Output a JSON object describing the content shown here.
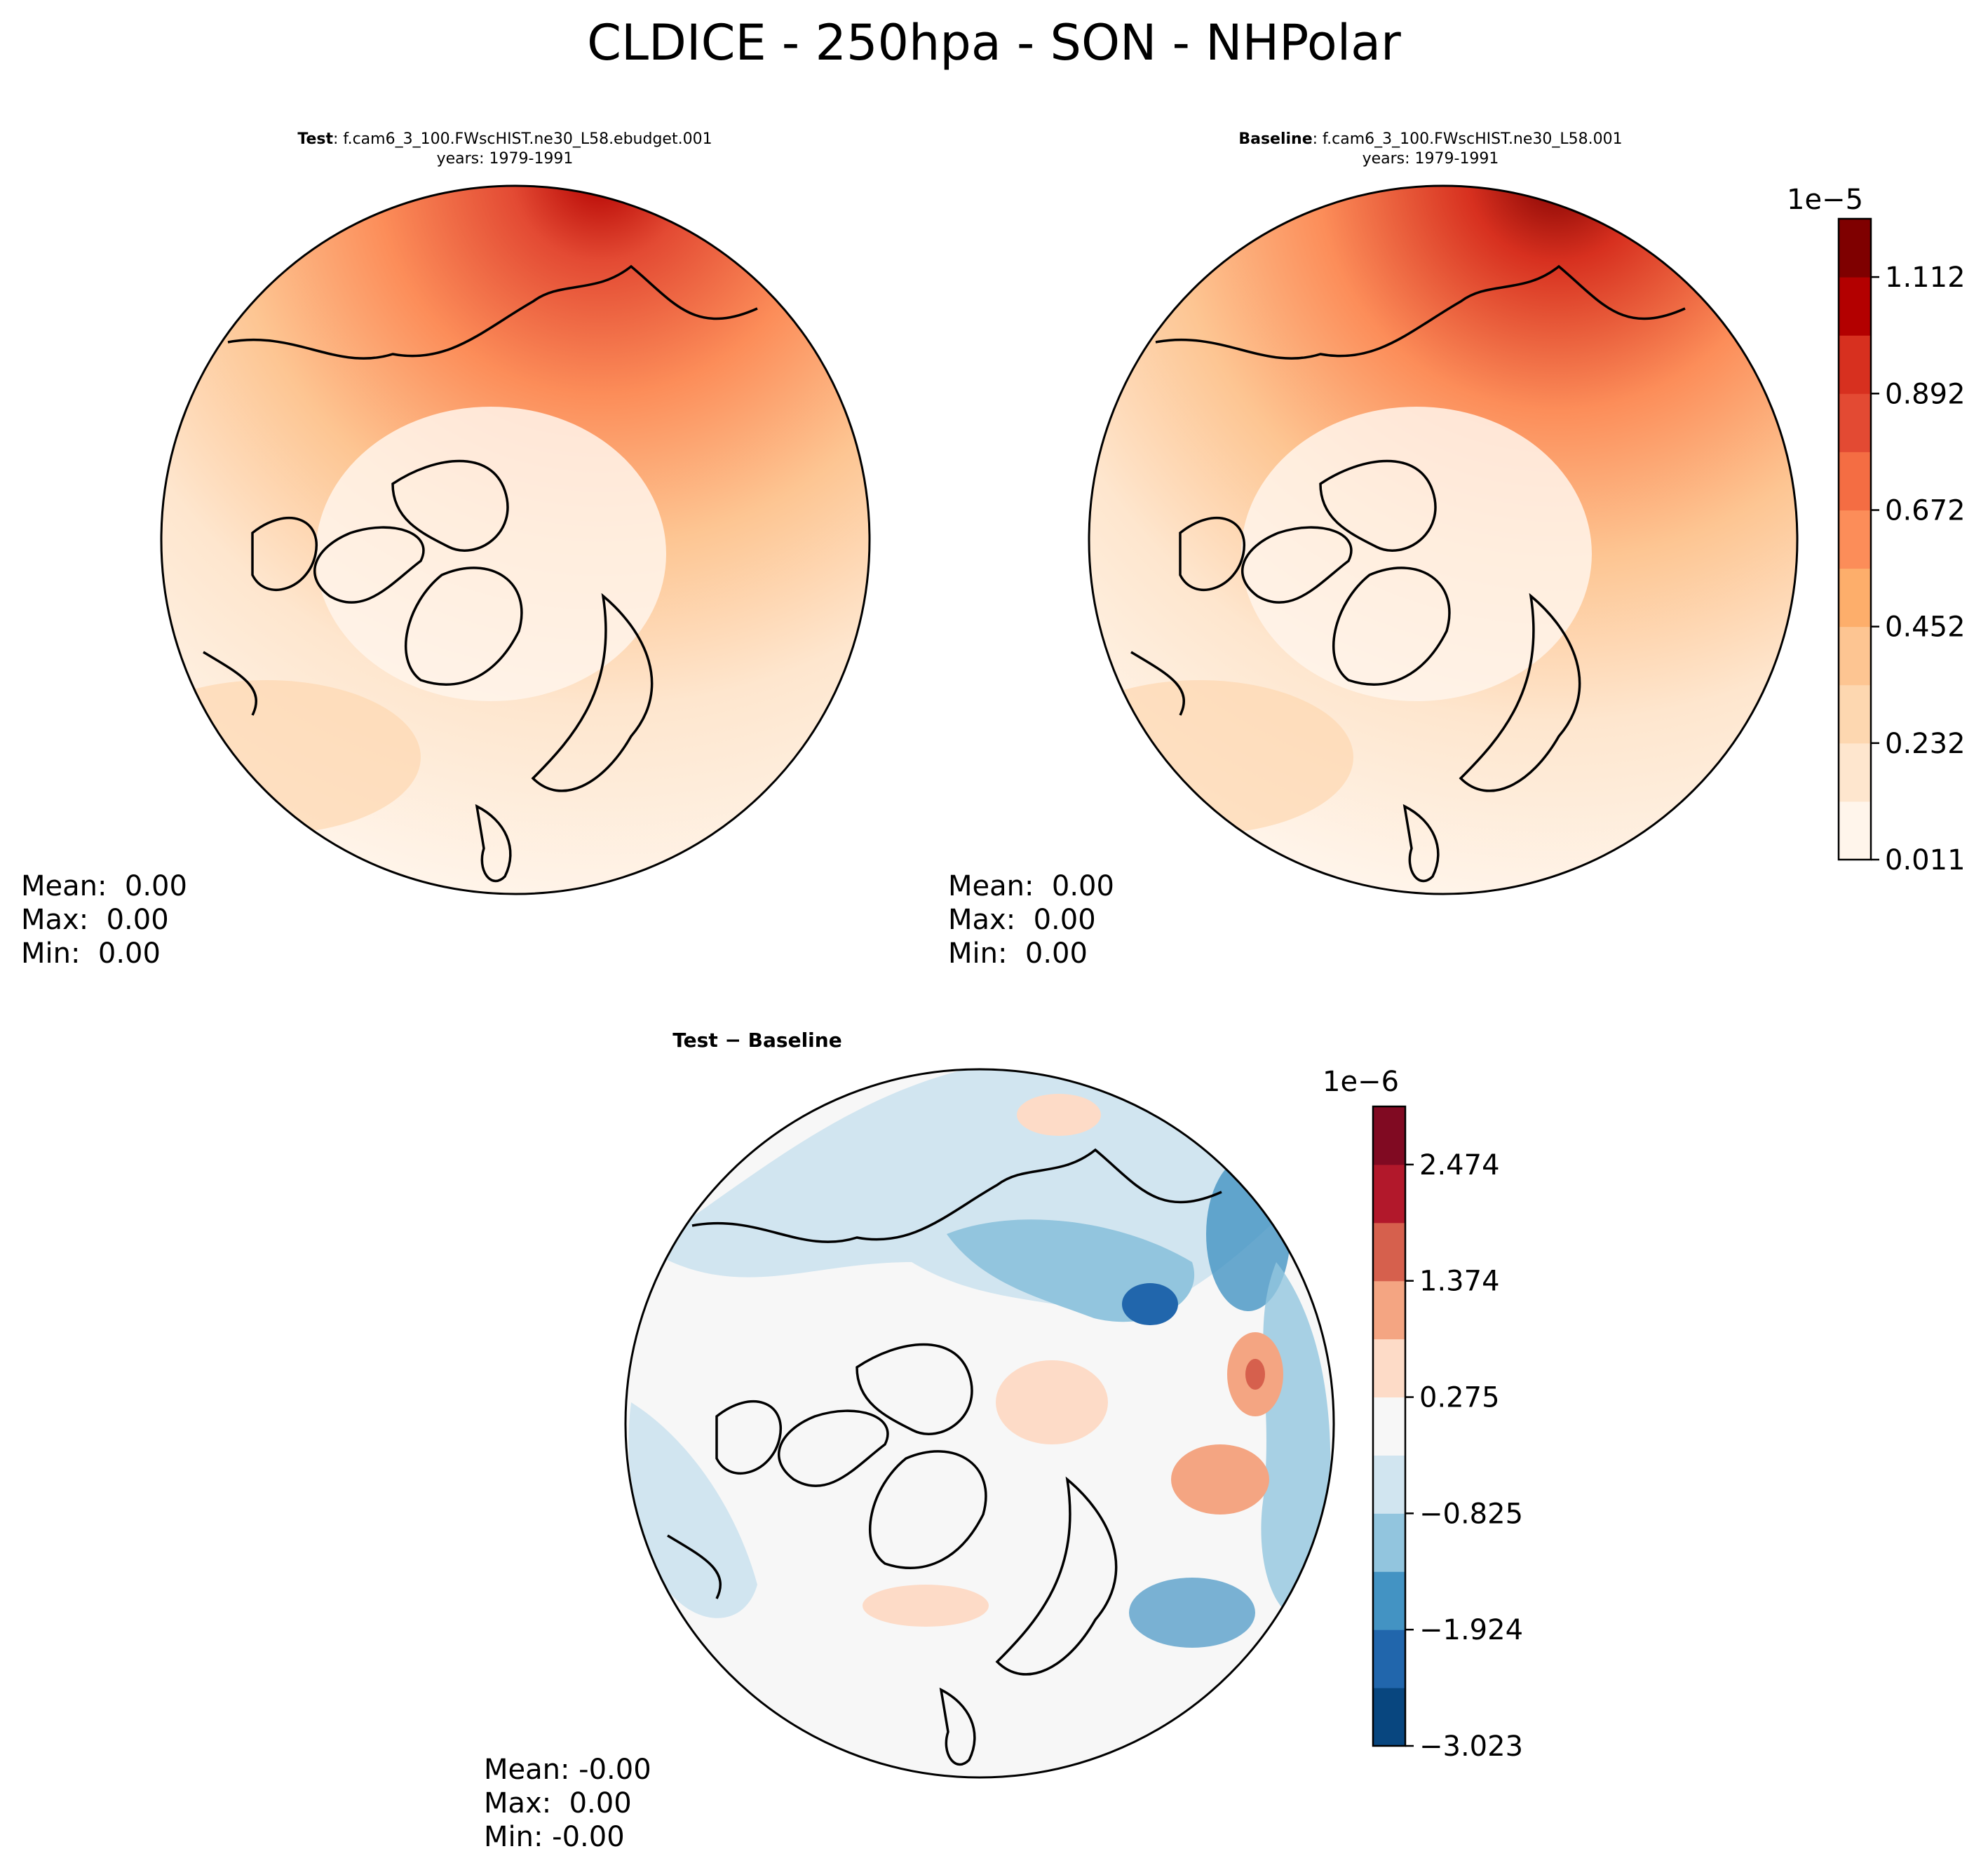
{
  "title": "CLDICE - 250hpa - SON - NHPolar",
  "panels": [
    {
      "id": "test",
      "title_bold": "Test",
      "title_rest": ": f.cam6_3_100.FWscHIST.ne30_L58.ebudget.001",
      "years": "years: 1979-1991",
      "stats": [
        "Mean:  0.00",
        "Max:  0.00",
        "Min:  0.00"
      ]
    },
    {
      "id": "baseline",
      "title_bold": "Baseline",
      "title_rest": ": f.cam6_3_100.FWscHIST.ne30_L58.001",
      "years": "years: 1979-1991",
      "stats": [
        "Mean:  0.00",
        "Max:  0.00",
        "Min:  0.00"
      ]
    },
    {
      "id": "diff",
      "title_bold": "Test − Baseline",
      "stats": [
        "Mean: -0.00",
        "Max:  0.00",
        "Min: -0.00"
      ]
    }
  ],
  "chart_data": [
    {
      "type": "heatmap",
      "projection": "north polar stereographic",
      "colorbar_exponent": "1e−5",
      "colorbar_ticks": [
        "0.011",
        "0.232",
        "0.452",
        "0.672",
        "0.892",
        "1.112"
      ],
      "levels": 11,
      "colors": [
        "#fff5eb",
        "#fee6ce",
        "#fdd7b0",
        "#fdc592",
        "#fdae6b",
        "#fc8d59",
        "#f46d43",
        "#e34a33",
        "#d7301f",
        "#b30000",
        "#7f0000"
      ]
    },
    {
      "type": "heatmap",
      "projection": "north polar stereographic",
      "colorbar_exponent": "1e−6",
      "colorbar_ticks": [
        "−3.023",
        "−1.924",
        "−0.825",
        "0.275",
        "1.374",
        "2.474"
      ],
      "levels": 11,
      "colors": [
        "#08467f",
        "#2166ac",
        "#4393c3",
        "#92c5de",
        "#d1e5f0",
        "#f7f7f7",
        "#fddbc7",
        "#f4a582",
        "#d6604d",
        "#b2182b",
        "#800a22"
      ]
    }
  ]
}
